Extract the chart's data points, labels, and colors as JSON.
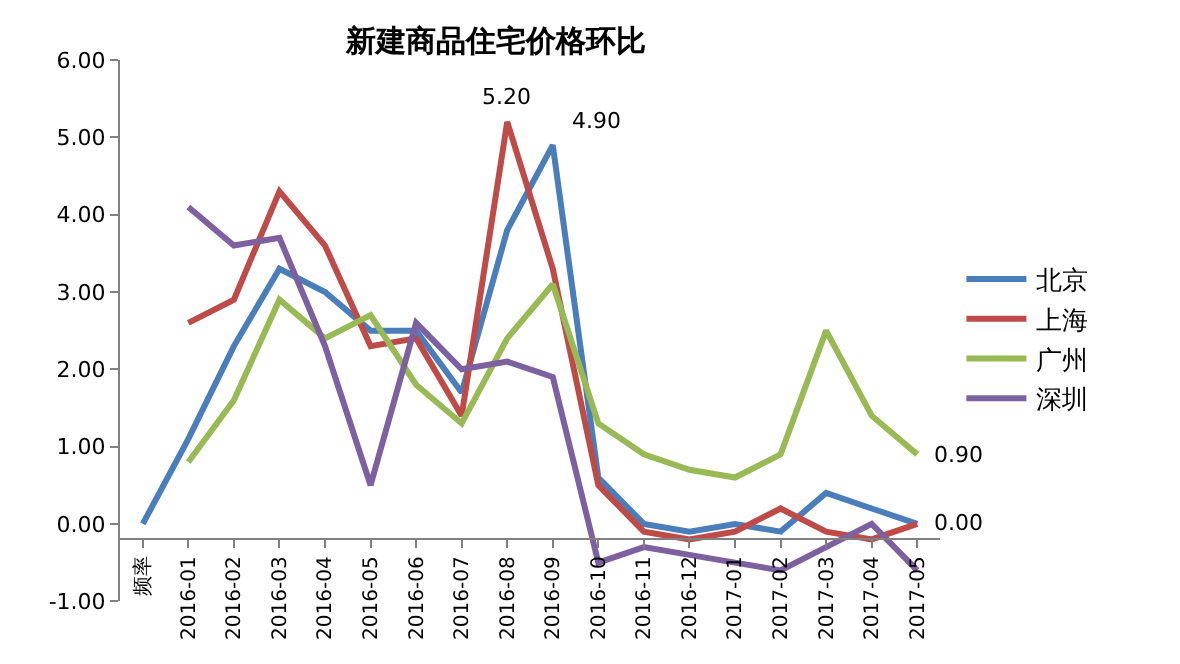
{
  "chart_data": {
    "type": "line",
    "title": "新建商品住宅价格环比",
    "categories": [
      "频率",
      "2016-01",
      "2016-02",
      "2016-03",
      "2016-04",
      "2016-05",
      "2016-06",
      "2016-07",
      "2016-08",
      "2016-09",
      "2016-10",
      "2016-11",
      "2016-12",
      "2017-01",
      "2017-02",
      "2017-03",
      "2017-04",
      "2017-05"
    ],
    "series": [
      {
        "name": "北京",
        "color": "#4a7ebb",
        "values": [
          0,
          1.1,
          2.3,
          3.3,
          3.0,
          2.5,
          2.5,
          1.7,
          3.8,
          4.9,
          0.6,
          0.0,
          -0.1,
          0.0,
          -0.1,
          0.4,
          0.2,
          0.0
        ],
        "value_labels": [
          null,
          null,
          null,
          null,
          null,
          null,
          null,
          null,
          null,
          "4.90",
          null,
          null,
          null,
          null,
          null,
          null,
          null,
          "0.00"
        ]
      },
      {
        "name": "上海",
        "color": "#be4b48",
        "values": [
          null,
          2.6,
          2.9,
          4.3,
          3.6,
          2.3,
          2.4,
          1.4,
          5.2,
          3.3,
          0.5,
          -0.1,
          -0.2,
          -0.1,
          0.2,
          -0.1,
          -0.2,
          0.0
        ],
        "value_labels": [
          null,
          null,
          null,
          null,
          null,
          null,
          null,
          null,
          "5.20",
          null,
          null,
          null,
          null,
          null,
          null,
          null,
          null,
          null
        ]
      },
      {
        "name": "广州",
        "color": "#98b954",
        "values": [
          null,
          0.8,
          1.6,
          2.9,
          2.4,
          2.7,
          1.8,
          1.3,
          2.4,
          3.1,
          1.3,
          0.9,
          0.7,
          0.6,
          0.9,
          2.5,
          1.4,
          0.9
        ],
        "value_labels": [
          null,
          null,
          null,
          null,
          null,
          null,
          null,
          null,
          null,
          null,
          null,
          null,
          null,
          null,
          null,
          null,
          null,
          "0.90"
        ]
      },
      {
        "name": "深圳",
        "color": "#7d60a0",
        "values": [
          null,
          4.1,
          3.6,
          3.7,
          2.3,
          0.5,
          2.6,
          2.0,
          2.1,
          1.9,
          -0.5,
          -0.3,
          -0.4,
          -0.5,
          -0.6,
          -0.3,
          0.0,
          -0.6
        ]
      }
    ],
    "ylim": [
      -1,
      6
    ],
    "yticks": [
      {
        "value": -1,
        "label": "-1.00"
      },
      {
        "value": 0,
        "label": "0.00"
      },
      {
        "value": 1,
        "label": "1.00"
      },
      {
        "value": 2,
        "label": "2.00"
      },
      {
        "value": 3,
        "label": "3.00"
      },
      {
        "value": 4,
        "label": "4.00"
      },
      {
        "value": 5,
        "label": "5.00"
      },
      {
        "value": 6,
        "label": "6.00"
      }
    ],
    "legend": "right",
    "marker": "none",
    "line_style": "solid"
  }
}
